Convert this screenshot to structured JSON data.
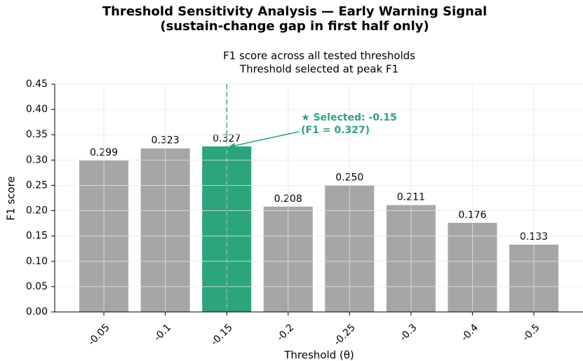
{
  "chart_data": {
    "type": "bar",
    "title": [
      "Threshold Sensitivity Analysis — Early Warning Signal",
      "(sustain-change gap in first half only)"
    ],
    "subtitle": [
      "F1 score across all tested thresholds",
      "Threshold selected at peak F1"
    ],
    "x_label": "Threshold (θ)",
    "y_label": "F1 score",
    "categories": [
      "-0.05",
      "-0.1",
      "-0.15",
      "-0.2",
      "-0.25",
      "-0.3",
      "-0.4",
      "-0.5"
    ],
    "values": [
      0.299,
      0.323,
      0.327,
      0.208,
      0.25,
      0.211,
      0.176,
      0.133
    ],
    "value_labels": [
      "0.299",
      "0.323",
      "0.327",
      "0.208",
      "0.250",
      "0.211",
      "0.176",
      "0.133"
    ],
    "color": "#a6a6a6",
    "highlight_color": "#2ca57a",
    "selected": "-0.15",
    "annotation": [
      "★ Selected: -0.15",
      "(F1 = 0.327)"
    ],
    "ylim": [
      0,
      0.45
    ],
    "yticks": [
      {
        "value": 0,
        "label": "0.00"
      },
      {
        "value": 0.05,
        "label": "0.05"
      },
      {
        "value": 0.1,
        "label": "0.10"
      },
      {
        "value": 0.15,
        "label": "0.15"
      },
      {
        "value": 0.2,
        "label": "0.20"
      },
      {
        "value": 0.25,
        "label": "0.25"
      },
      {
        "value": 0.3,
        "label": "0.30"
      },
      {
        "value": 0.35,
        "label": "0.35"
      },
      {
        "value": 0.4,
        "label": "0.40"
      },
      {
        "value": 0.45,
        "label": "0.45"
      }
    ],
    "grid": true
  }
}
